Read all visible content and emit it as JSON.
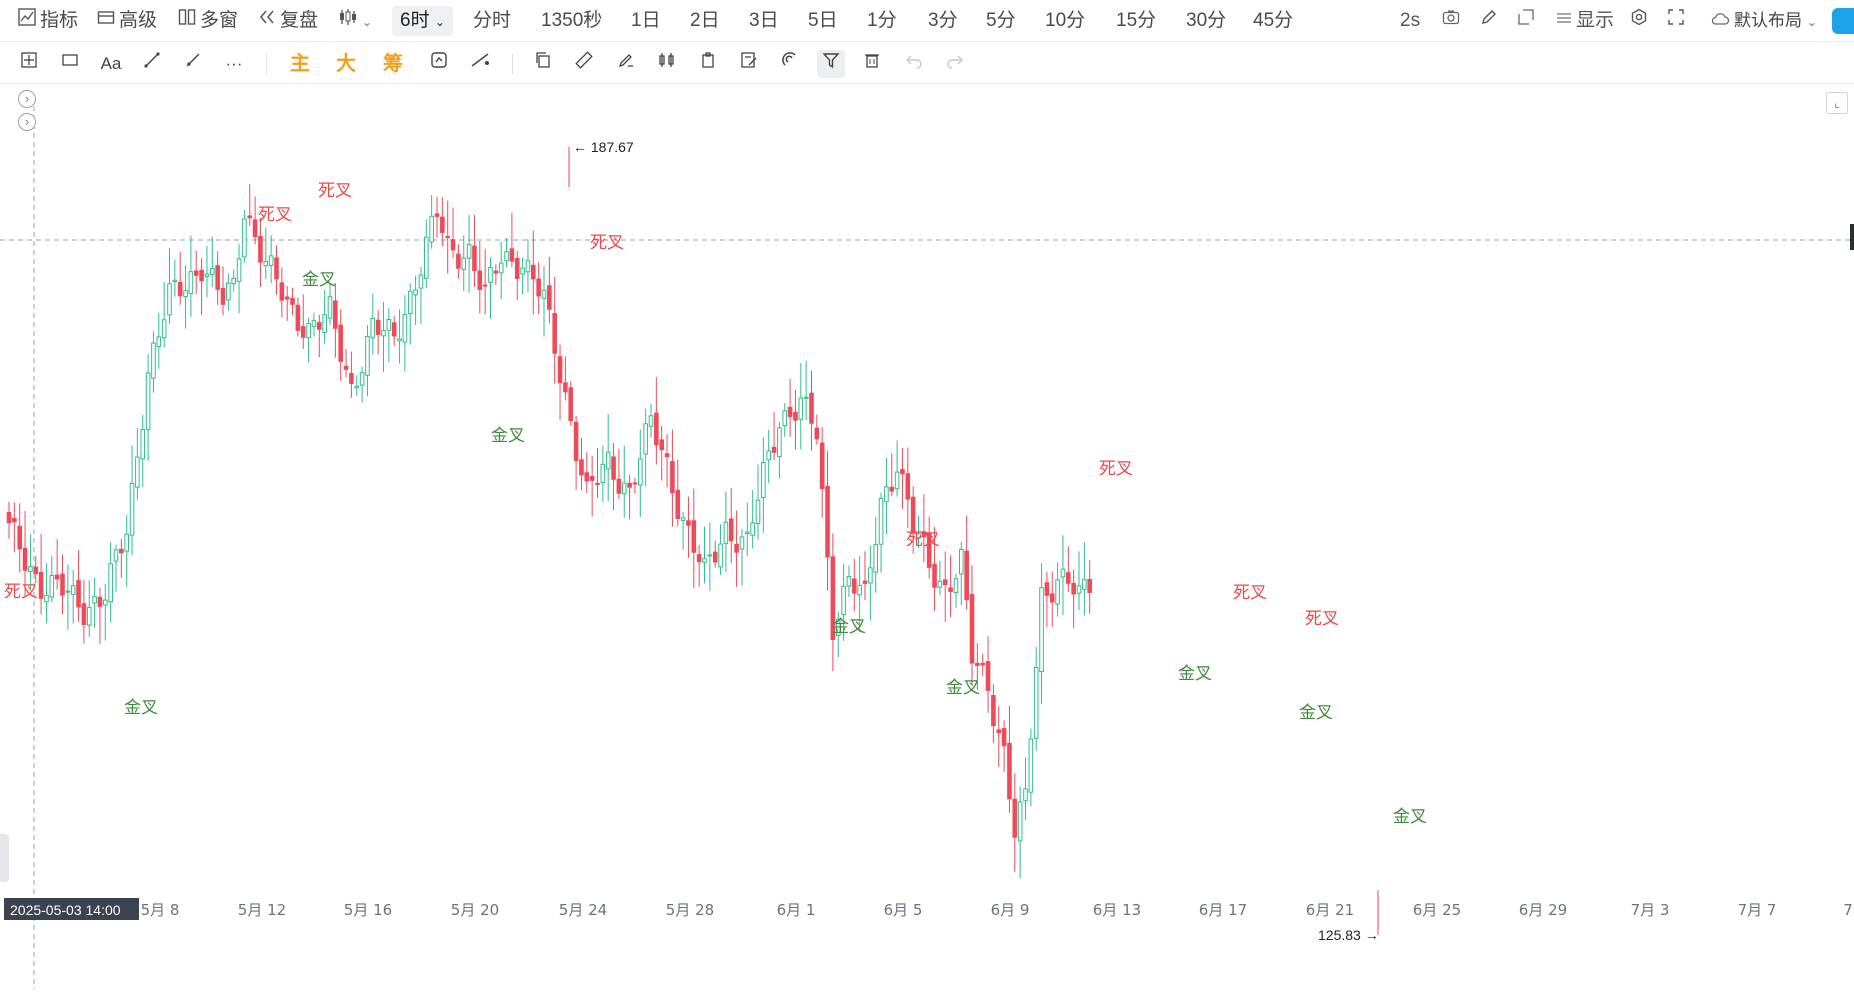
{
  "toolbar": {
    "indicator": "指标",
    "advanced": "高级",
    "multi_window": "多窗",
    "replay": "复盘",
    "period_active": "6时",
    "periods": [
      "分时",
      "1350秒",
      "1日",
      "2日",
      "3日",
      "5日",
      "1分",
      "3分",
      "5分",
      "10分",
      "15分",
      "30分",
      "45分"
    ],
    "refresh": "2s",
    "display": "显示",
    "layout": "默认布局"
  },
  "drawbar": {
    "text_tool": "Aa",
    "more": "···",
    "main_label": "主",
    "big_label": "大",
    "chip_label": "筹"
  },
  "colors": {
    "up": "#2fbf8a",
    "down": "#ee4a5a",
    "gold_cross": "#3f8a3f",
    "death_cross": "#f04848",
    "accent": "#1aa3e8"
  },
  "chart_data": {
    "type": "candlestick",
    "interval": "6时",
    "max_label": "187.67",
    "min_label": "125.83",
    "crosshair_time": "2025-05-03 14:00",
    "x_ticks": [
      "5月 8",
      "5月 12",
      "5月 16",
      "5月 20",
      "5月 24",
      "5月 28",
      "6月 1",
      "6月 5",
      "6月 9",
      "6月 13",
      "6月 17",
      "6月 21",
      "6月 25",
      "6月 29",
      "7月 3",
      "7月 7",
      "7"
    ],
    "anchors": [
      {
        "t": 0,
        "v": 157.5
      },
      {
        "t": 6,
        "v": 153.3
      },
      {
        "t": 10,
        "v": 152.7
      },
      {
        "t": 14,
        "v": 151.5
      },
      {
        "t": 18,
        "v": 152.5
      },
      {
        "t": 22,
        "v": 157.3
      },
      {
        "t": 26,
        "v": 170.1
      },
      {
        "t": 30,
        "v": 175.6
      },
      {
        "t": 33,
        "v": 176.9
      },
      {
        "t": 36,
        "v": 178.4
      },
      {
        "t": 40,
        "v": 175.4
      },
      {
        "t": 42,
        "v": 176.4
      },
      {
        "t": 44,
        "v": 182.9
      },
      {
        "t": 48,
        "v": 178.4
      },
      {
        "t": 52,
        "v": 175.1
      },
      {
        "t": 56,
        "v": 173.4
      },
      {
        "t": 60,
        "v": 174.3
      },
      {
        "t": 64,
        "v": 168.7
      },
      {
        "t": 68,
        "v": 173.3
      },
      {
        "t": 72,
        "v": 172.5
      },
      {
        "t": 76,
        "v": 177.1
      },
      {
        "t": 80,
        "v": 182.2
      },
      {
        "t": 82,
        "v": 179.5
      },
      {
        "t": 86,
        "v": 179.4
      },
      {
        "t": 89,
        "v": 175.7
      },
      {
        "t": 92,
        "v": 178.9
      },
      {
        "t": 96,
        "v": 178.6
      },
      {
        "t": 100,
        "v": 175.4
      },
      {
        "t": 104,
        "v": 168.2
      },
      {
        "t": 108,
        "v": 160.2
      },
      {
        "t": 112,
        "v": 162.7
      },
      {
        "t": 116,
        "v": 160.7
      },
      {
        "t": 120,
        "v": 165.7
      },
      {
        "t": 123,
        "v": 162.7
      },
      {
        "t": 126,
        "v": 158.4
      },
      {
        "t": 130,
        "v": 153.9
      },
      {
        "t": 134,
        "v": 157.8
      },
      {
        "t": 138,
        "v": 156.3
      },
      {
        "t": 141,
        "v": 161.7
      },
      {
        "t": 144,
        "v": 166.3
      },
      {
        "t": 148,
        "v": 167.3
      },
      {
        "t": 151,
        "v": 165.0
      },
      {
        "t": 154,
        "v": 150.3
      },
      {
        "t": 157,
        "v": 153.8
      },
      {
        "t": 160,
        "v": 151.9
      },
      {
        "t": 163,
        "v": 159.8
      },
      {
        "t": 166,
        "v": 162.9
      },
      {
        "t": 169,
        "v": 157.6
      },
      {
        "t": 172,
        "v": 154.8
      },
      {
        "t": 175,
        "v": 153.1
      },
      {
        "t": 178,
        "v": 154.9
      },
      {
        "t": 180,
        "v": 147.4
      },
      {
        "t": 183,
        "v": 145.4
      },
      {
        "t": 186,
        "v": 140.2
      },
      {
        "t": 188,
        "v": 133.8
      },
      {
        "t": 190,
        "v": 136.2
      },
      {
        "t": 193,
        "v": 152.5
      },
      {
        "t": 196,
        "v": 153.8
      },
      {
        "t": 198,
        "v": 153.4
      },
      {
        "t": 200,
        "v": 152.0
      },
      {
        "t": 202,
        "v": 153.4
      }
    ],
    "signals": [
      {
        "label": "死叉",
        "type": "death",
        "t": 1
      },
      {
        "label": "金叉",
        "type": "gold",
        "t": 17
      },
      {
        "label": "死叉",
        "type": "death",
        "t": 36
      },
      {
        "label": "死叉",
        "type": "death",
        "t": 43
      },
      {
        "label": "金叉",
        "type": "gold",
        "t": 41
      },
      {
        "label": "金叉",
        "type": "gold",
        "t": 69
      },
      {
        "label": "死叉",
        "type": "death",
        "t": 83
      },
      {
        "label": "金叉",
        "type": "gold",
        "t": 116
      },
      {
        "label": "死叉",
        "type": "death",
        "t": 125
      },
      {
        "label": "金叉",
        "type": "gold",
        "t": 131
      },
      {
        "label": "死叉",
        "type": "death",
        "t": 152
      },
      {
        "label": "金叉",
        "type": "gold",
        "t": 163
      },
      {
        "label": "死叉",
        "type": "death",
        "t": 170
      },
      {
        "label": "死叉",
        "type": "death",
        "t": 180
      },
      {
        "label": "金叉",
        "type": "gold",
        "t": 179
      },
      {
        "label": "金叉",
        "type": "gold",
        "t": 192
      }
    ]
  }
}
